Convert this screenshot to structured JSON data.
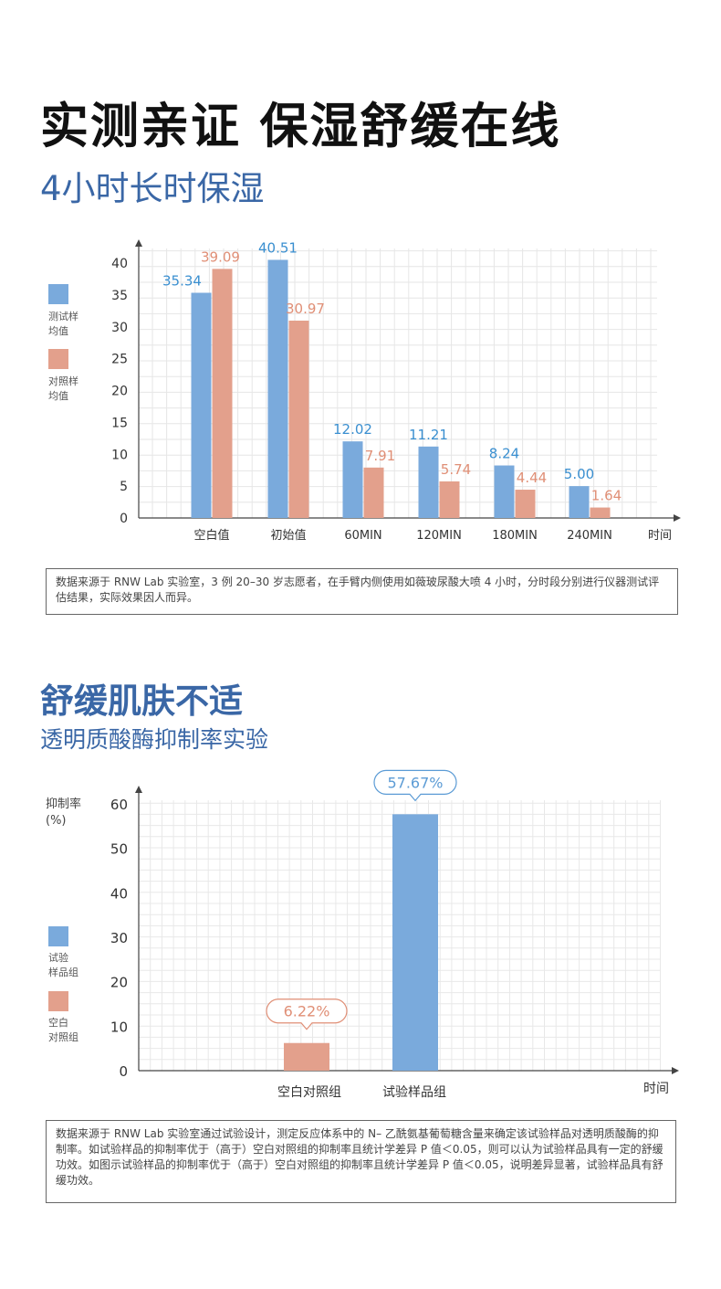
{
  "headline": "实测亲证 保湿舒缓在线",
  "section1": {
    "subtitle": "4小时长时保湿",
    "legend": [
      {
        "label_line1": "测试样",
        "label_line2": "均值",
        "color": "#7aaadc"
      },
      {
        "label_line1": "对照样",
        "label_line2": "均值",
        "color": "#e3a08c"
      }
    ],
    "note": "数据来源于 RNW Lab 实验室，3 例 20–30 岁志愿者，在手臂内侧使用如薇玻尿酸大喷 4 小时，分时段分别进行仪器测试评估结果，实际效果因人而异。"
  },
  "section2": {
    "title": "舒缓肌肤不适",
    "subtitle": "透明质酸酶抑制率实验",
    "ylabel_line1": "抑制率",
    "ylabel_line2": "(%)",
    "legend": [
      {
        "label_line1": "试验",
        "label_line2": "样品组",
        "color": "#7aaadc"
      },
      {
        "label_line1": "空白",
        "label_line2": "对照组",
        "color": "#e3a08c"
      }
    ],
    "note": "数据来源于 RNW Lab 实验室通过试验设计，测定反应体系中的 N– 乙酰氨基葡萄糖含量来确定该试验样品对透明质酸酶的抑制率。如试验样品的抑制率优于（高于）空白对照组的抑制率且统计学差异 P 值＜0.05，则可以认为试验样品具有一定的舒缓功效。如图示试验样品的抑制率优于（高于）空白对照组的抑制率且统计学差异 P 值＜0.05，说明差异显著，试验样品具有舒缓功效。"
  },
  "chart_data": [
    {
      "type": "bar",
      "categories": [
        "空白值",
        "初始值",
        "60MIN",
        "120MIN",
        "180MIN",
        "240MIN"
      ],
      "xlabel": "时间",
      "ylabel": "",
      "ylim": [
        0,
        40
      ],
      "yticks": [
        0,
        5,
        10,
        15,
        20,
        25,
        30,
        35,
        40
      ],
      "grid": true,
      "legend_position": "left",
      "series": [
        {
          "name": "测试样均值",
          "values": [
            35.34,
            40.51,
            12.02,
            11.21,
            8.24,
            5.0
          ],
          "labels": [
            "35.34",
            "40.51",
            "12.02",
            "11.21",
            "8.24",
            "5.00"
          ],
          "color": "#7aaadc",
          "label_color": "#3a8fd0"
        },
        {
          "name": "对照样均值",
          "values": [
            39.09,
            30.97,
            7.91,
            5.74,
            4.44,
            1.64
          ],
          "labels": [
            "39.09",
            "30.97",
            "7.91",
            "5.74",
            "4.44",
            "1.64"
          ],
          "color": "#e3a08c",
          "label_color": "#e08f76"
        }
      ]
    },
    {
      "type": "bar",
      "categories": [
        "空白对照组",
        "试验样品组"
      ],
      "xlabel": "时间",
      "ylabel": "抑制率 (%)",
      "ylim": [
        0,
        60
      ],
      "yticks": [
        0,
        10,
        20,
        30,
        40,
        50,
        60
      ],
      "grid": true,
      "legend_position": "left",
      "values": [
        6.22,
        57.67
      ],
      "labels": [
        "6.22%",
        "57.67%"
      ],
      "colors": [
        "#e3a08c",
        "#7aaadc"
      ],
      "label_colors": [
        "#e08f76",
        "#5b9bd5"
      ]
    }
  ]
}
